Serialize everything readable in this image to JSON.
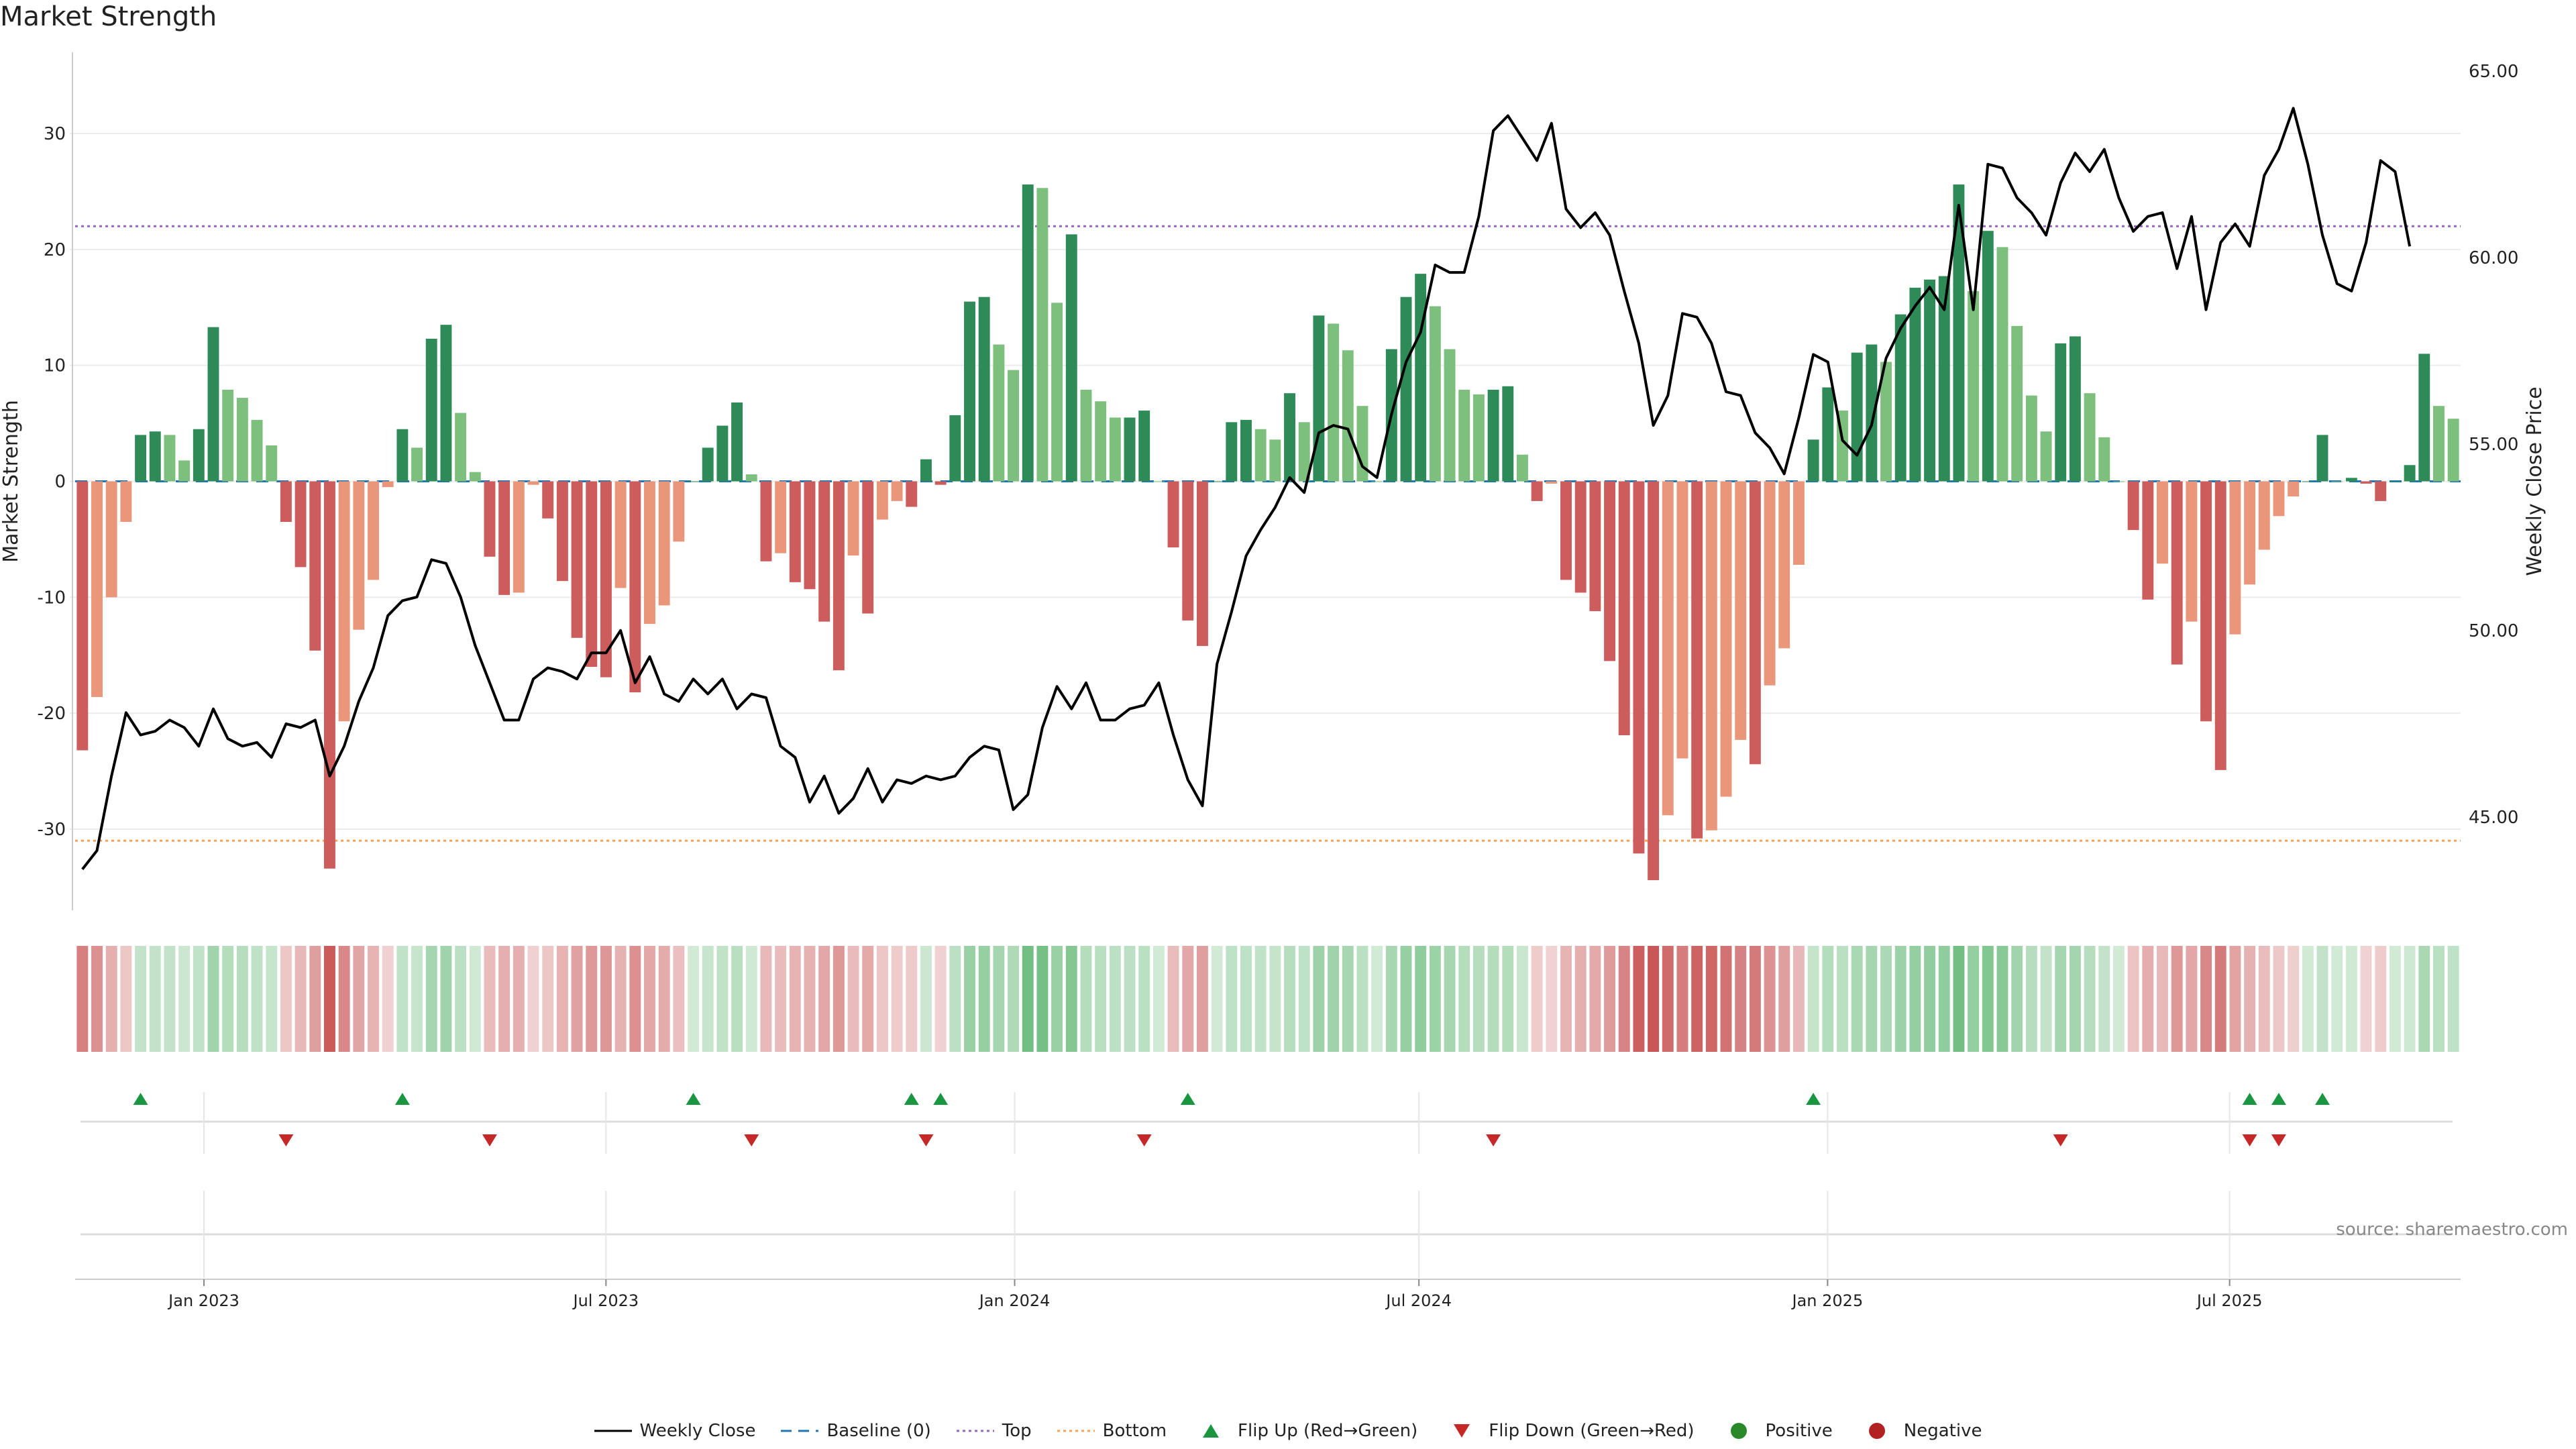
{
  "chart_data": {
    "type": "bar",
    "title": "Market Strength",
    "ylabel_left": "Market Strength",
    "ylabel_right": "Weekly Close Price",
    "ylim_left": [
      -37,
      37
    ],
    "ylim_right": [
      42.5,
      65.5
    ],
    "left_ticks": [
      "30",
      "20",
      "10",
      "0",
      "-10",
      "-20",
      "-30"
    ],
    "right_ticks": [
      "65.00",
      "60.00",
      "55.00",
      "50.00",
      "45.00"
    ],
    "x_ticks": [
      "Jan 2023",
      "Jul 2023",
      "Jan 2024",
      "Jul 2024",
      "Jan 2025",
      "Jul 2025"
    ],
    "x_range": [
      "2022-11-04",
      "2025-10-13"
    ],
    "top_line": 22,
    "bottom_line": -31,
    "strength": [
      -23.2,
      -18.6,
      -10,
      -3.5,
      4,
      4.3,
      4,
      1.8,
      4.5,
      13.3,
      7.9,
      7.2,
      5.3,
      3.1,
      -3.5,
      -7.4,
      -14.6,
      -33.4,
      -20.7,
      -12.8,
      -8.5,
      -0.5,
      4.5,
      2.9,
      12.3,
      13.5,
      5.9,
      0.8,
      -6.5,
      -9.8,
      -9.6,
      -0.3,
      -3.2,
      -8.6,
      -13.5,
      -16,
      -16.9,
      -9.2,
      -18.2,
      -12.3,
      -10.7,
      -5.2,
      0,
      2.9,
      4.8,
      6.8,
      0.6,
      -6.9,
      -6.2,
      -8.7,
      -9.3,
      -12.1,
      -16.3,
      -6.4,
      -11.4,
      -3.3,
      -1.7,
      -2.2,
      1.9,
      -0.3,
      5.7,
      15.5,
      15.9,
      11.8,
      9.6,
      25.6,
      25.3,
      15.4,
      21.3,
      7.9,
      6.9,
      5.5,
      5.5,
      6.1,
      0,
      -5.7,
      -12,
      -14.2,
      0,
      5.1,
      5.3,
      4.5,
      3.6,
      7.6,
      5.1,
      14.3,
      13.6,
      11.3,
      6.5,
      0,
      11.4,
      15.9,
      17.9,
      15.1,
      11.4,
      7.9,
      7.5,
      7.9,
      8.2,
      2.3,
      -1.7,
      -0.2,
      -8.5,
      -9.6,
      -11.2,
      -15.5,
      -21.9,
      -32.1,
      -34.4,
      -28.8,
      -23.9,
      -30.8,
      -30.1,
      -27.2,
      -22.3,
      -24.4,
      -17.6,
      -14.4,
      -7.2,
      3.6,
      8.1,
      6.1,
      11.1,
      11.8,
      10.3,
      14.4,
      16.7,
      17.4,
      17.7,
      25.6,
      16.4,
      21.6,
      20.2,
      13.4,
      7.4,
      4.3,
      11.9,
      12.5,
      7.6,
      3.8,
      0,
      -4.2,
      -10.2,
      -7.1,
      -15.8,
      -12.1,
      -20.7,
      -24.9,
      -13.2,
      -8.9,
      -5.9,
      -3,
      -1.3,
      0,
      4,
      0,
      0.3,
      -0.2,
      -1.7,
      0,
      1.4,
      11,
      6.5,
      5.4
    ],
    "close": [
      43.6,
      44.1,
      46.1,
      47.8,
      47.2,
      47.3,
      47.6,
      47.4,
      46.9,
      47.9,
      47.1,
      46.9,
      47,
      46.6,
      47.5,
      47.4,
      47.6,
      46.1,
      46.9,
      48.1,
      49,
      50.4,
      50.8,
      50.9,
      51.9,
      51.8,
      50.9,
      49.6,
      48.6,
      47.6,
      47.6,
      48.7,
      49,
      48.9,
      48.7,
      49.4,
      49.4,
      50,
      48.6,
      49.3,
      48.3,
      48.1,
      48.7,
      48.3,
      48.7,
      47.9,
      48.3,
      48.2,
      46.9,
      46.6,
      45.4,
      46.1,
      45.1,
      45.5,
      46.3,
      45.4,
      46,
      45.9,
      46.1,
      46,
      46.1,
      46.6,
      46.9,
      46.8,
      45.2,
      45.6,
      47.4,
      48.5,
      47.9,
      48.6,
      47.6,
      47.6,
      47.9,
      48,
      48.6,
      47.2,
      46,
      45.3,
      49.1,
      50.5,
      52,
      52.7,
      53.3,
      54.1,
      53.7,
      55.3,
      55.5,
      55.4,
      54.4,
      54.1,
      55.8,
      57.2,
      58,
      59.8,
      59.6,
      59.6,
      61.1,
      63.4,
      63.8,
      63.2,
      62.6,
      63.6,
      61.3,
      60.8,
      61.2,
      60.6,
      59.1,
      57.7,
      55.5,
      56.3,
      58.5,
      58.4,
      57.7,
      56.4,
      56.3,
      55.3,
      54.9,
      54.2,
      55.7,
      57.4,
      57.2,
      55.1,
      54.7,
      55.5,
      57.3,
      58.1,
      58.7,
      59.2,
      58.6,
      61.4,
      58.6,
      62.5,
      62.4,
      61.6,
      61.2,
      60.6,
      62,
      62.8,
      62.3,
      62.9,
      61.6,
      60.7,
      61.1,
      61.2,
      59.7,
      61.1,
      58.6,
      60.4,
      60.9,
      60.3,
      62.2,
      62.9,
      64,
      62.5,
      60.6,
      59.3,
      59.1,
      60.4,
      62.6,
      62.3,
      60.3
    ],
    "flip_up": [
      4,
      22,
      42,
      57,
      59,
      76,
      119,
      149,
      151,
      154
    ],
    "flip_down": [
      14,
      28,
      46,
      58,
      73,
      97,
      136,
      149,
      151
    ],
    "series": [
      {
        "name": "Weekly Close"
      },
      {
        "name": "Baseline (0)"
      },
      {
        "name": "Top"
      },
      {
        "name": "Bottom"
      },
      {
        "name": "Flip Up (Red→Green)"
      },
      {
        "name": "Flip Down (Green→Red)"
      },
      {
        "name": "Positive"
      },
      {
        "name": "Negative"
      }
    ],
    "colors": {
      "pos_dark": "#2e8b57",
      "pos_light": "#7dbf7d",
      "neg_dark": "#cd5c5c",
      "neg_light": "#e9967a",
      "close": "#000000",
      "baseline": "#1f77b4",
      "top": "#9467bd",
      "bottom": "#ffa055",
      "flip_up": "#1a9641",
      "flip_down": "#c62828",
      "positive": "#2a8a2a",
      "negative": "#b22222"
    },
    "source": "source: sharemaestro.com"
  }
}
